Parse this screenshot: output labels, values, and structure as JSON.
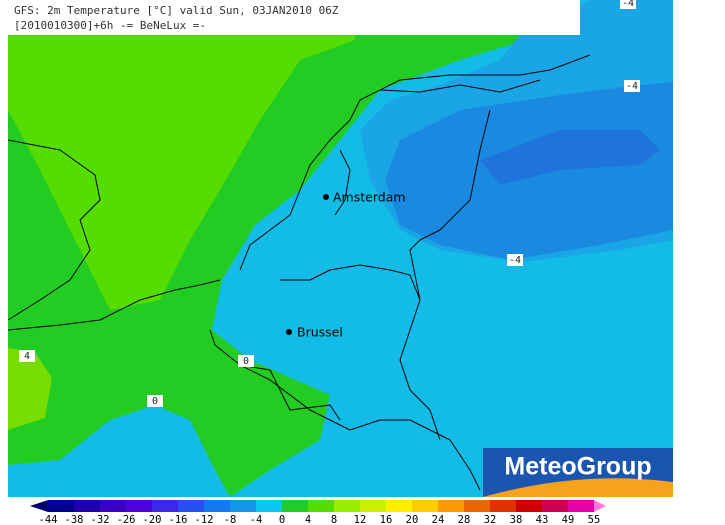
{
  "header": {
    "title": "GFS: 2m Temperature [°C] valid Sun, 03JAN2010 06Z",
    "subtitle": "[2010010300]+6h -= BeNeLux =-"
  },
  "cities": [
    {
      "label": "Amsterdam"
    },
    {
      "label": "Brussel"
    }
  ],
  "contour_labels": [
    "-4",
    "-4",
    "-4",
    "0",
    "0",
    "4"
  ],
  "logo": "MeteoGroup",
  "colorbar": {
    "labels": [
      "-44",
      "-38",
      "-32",
      "-26",
      "-20",
      "-16",
      "-12",
      "-8",
      "-4",
      "0",
      "4",
      "8",
      "12",
      "16",
      "20",
      "24",
      "28",
      "32",
      "38",
      "43",
      "49",
      "55"
    ],
    "colors": [
      "#000070",
      "#000090",
      "#2000a8",
      "#3c00c0",
      "#5000d8",
      "#3c28e6",
      "#2850f0",
      "#1478f0",
      "#1496e6",
      "#0ac8f0",
      "#22cc22",
      "#55dd00",
      "#99ee00",
      "#ccee00",
      "#ffee00",
      "#ffcc00",
      "#ff9900",
      "#ee6600",
      "#dd3300",
      "#cc0000",
      "#cc0055",
      "#e600aa",
      "#ff77dd"
    ]
  }
}
